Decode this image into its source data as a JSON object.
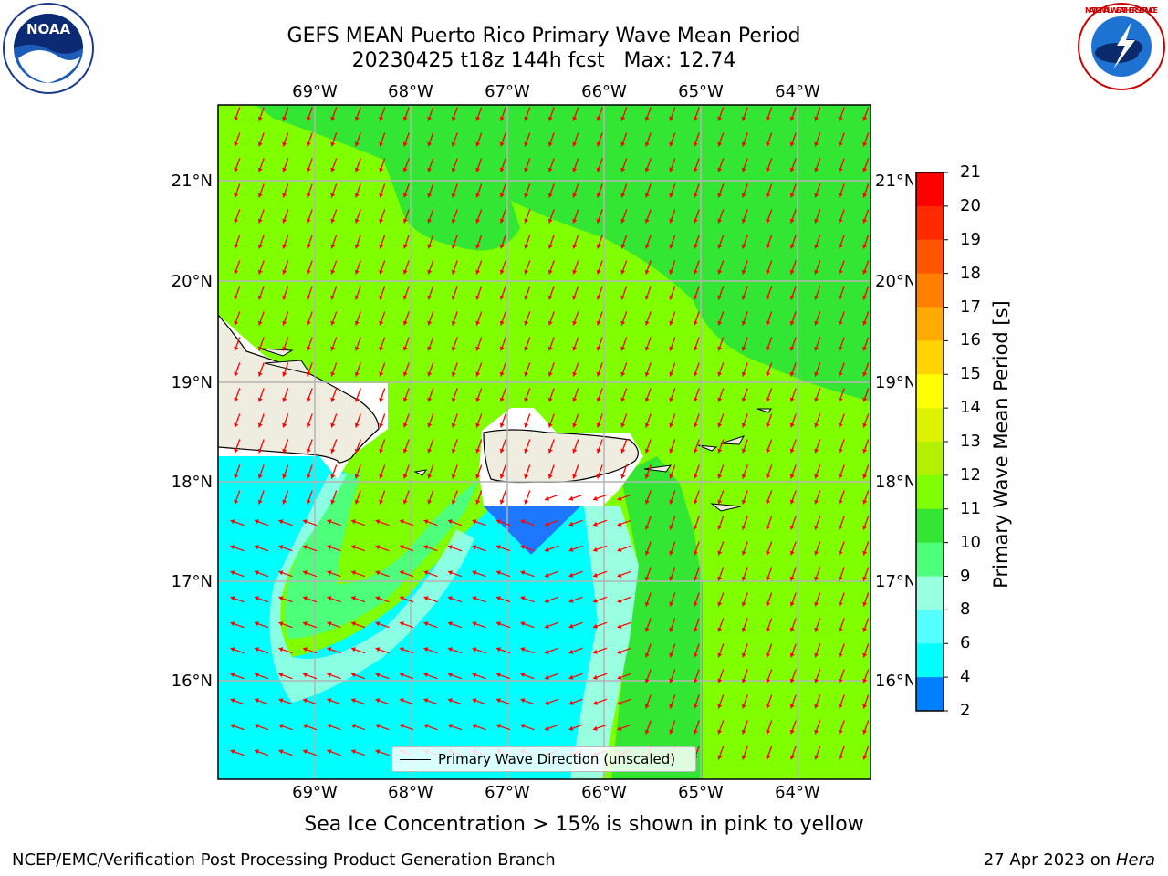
{
  "header": {
    "title_line1": "GEFS MEAN Puerto Rico Primary Wave Mean Period",
    "title_line2": "20230425 t18z 144h fcst   Max: 12.74"
  },
  "map": {
    "lon_labels": [
      "69°W",
      "68°W",
      "67°W",
      "66°W",
      "65°W",
      "64°W"
    ],
    "lat_labels": [
      "21°N",
      "20°N",
      "19°N",
      "18°N",
      "17°N",
      "16°N"
    ],
    "legend_label": "Primary Wave Direction (unscaled)",
    "land_color": "#efece0",
    "arrow_color": "#ff0000"
  },
  "colorbar": {
    "title": "Primary Wave Mean Period [s]",
    "levels": [
      "21",
      "20",
      "19",
      "18",
      "17",
      "16",
      "15",
      "14",
      "13",
      "12",
      "11",
      "10",
      "9",
      "8",
      "6",
      "4",
      "2"
    ],
    "colors": [
      "#ff0000",
      "#ff2a00",
      "#ff5500",
      "#ff8000",
      "#ffaa00",
      "#ffd400",
      "#ffff00",
      "#ddf200",
      "#b3f000",
      "#80ff00",
      "#33e633",
      "#4dff7a",
      "#99ffe0",
      "#55ffff",
      "#00ffff",
      "#0080ff",
      "#0000ff"
    ]
  },
  "caption": "Sea Ice Concentration > 15% is shown in pink to yellow",
  "footer": {
    "left": "NCEP/EMC/Verification Post Processing Product Generation Branch",
    "date": "27 Apr 2023 on ",
    "host": "Hera"
  },
  "logos": {
    "noaa_text": "NOAA",
    "nws_text": "NATIONAL WEATHER SERVICE"
  }
}
